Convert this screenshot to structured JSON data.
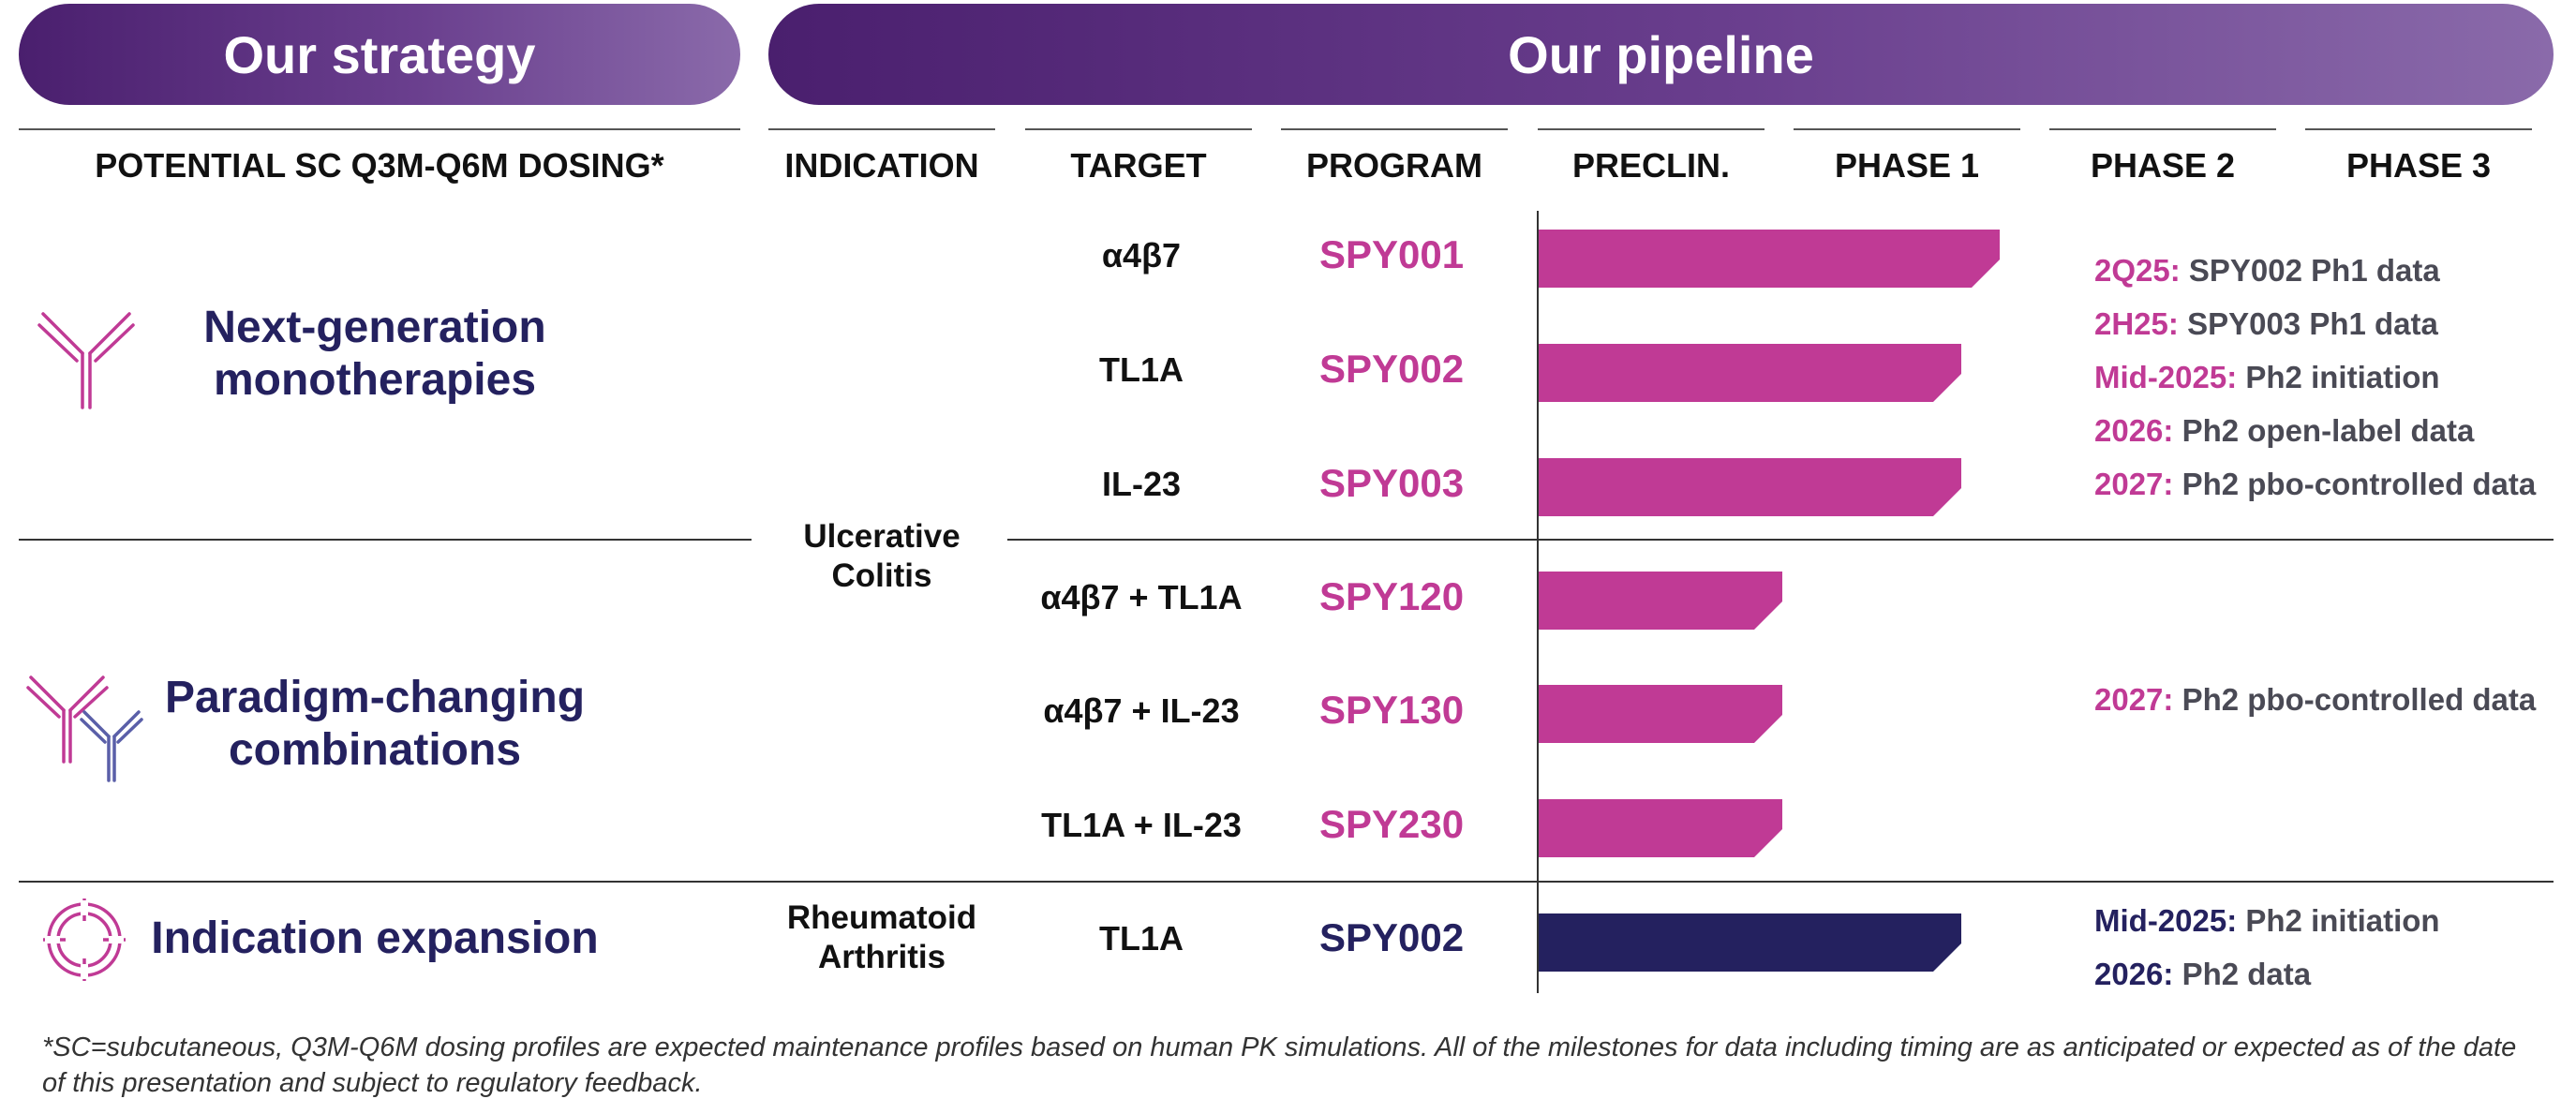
{
  "banners": {
    "strategy": "Our strategy",
    "pipeline": "Our pipeline"
  },
  "headers": {
    "dosing": "POTENTIAL SC Q3M-Q6M DOSING*",
    "indication": "INDICATION",
    "target": "TARGET",
    "program": "PROGRAM",
    "preclin": "PRECLIN.",
    "phase1": "PHASE 1",
    "phase2": "PHASE 2",
    "phase3": "PHASE 3"
  },
  "strategies": {
    "monotherapies": {
      "line1": "Next-generation",
      "line2": "monotherapies"
    },
    "combinations": {
      "line1": "Paradigm-changing",
      "line2": "combinations"
    },
    "expansion": {
      "line1": "Indication expansion"
    }
  },
  "indications": {
    "uc": {
      "line1": "Ulcerative",
      "line2": "Colitis"
    },
    "ra": {
      "line1": "Rheumatoid",
      "line2": "Arthritis"
    }
  },
  "rows": [
    {
      "target": "α4β7",
      "program": "SPY001",
      "progress_phase": 1.8
    },
    {
      "target": "TL1A",
      "program": "SPY002",
      "progress_phase": 1.65
    },
    {
      "target": "IL-23",
      "program": "SPY003",
      "progress_phase": 1.65
    },
    {
      "target": "α4β7 + TL1A",
      "program": "SPY120",
      "progress_phase": 0.95
    },
    {
      "target": "α4β7 + IL-23",
      "program": "SPY130",
      "progress_phase": 0.95
    },
    {
      "target": "TL1A + IL-23",
      "program": "SPY230",
      "progress_phase": 0.95
    },
    {
      "target": "TL1A",
      "program": "SPY002",
      "progress_phase": 1.65
    }
  ],
  "milestones": {
    "mono": [
      {
        "label": "2Q25:",
        "text": "SPY002 Ph1 data"
      },
      {
        "label": "2H25:",
        "text": "SPY003 Ph1 data"
      },
      {
        "label": "Mid-2025:",
        "text": "Ph2 initiation"
      },
      {
        "label": "2026:",
        "text": "Ph2 open-label data"
      },
      {
        "label": "2027:",
        "text": "Ph2 pbo-controlled data"
      }
    ],
    "combo": [
      {
        "label": "2027:",
        "text": "Ph2 pbo-controlled data"
      }
    ],
    "ra": [
      {
        "label": "Mid-2025:",
        "text": "Ph2 initiation"
      },
      {
        "label": "2026:",
        "text": "Ph2 data"
      }
    ]
  },
  "footnote": {
    "line1": "*SC=subcutaneous, Q3M-Q6M dosing profiles are expected maintenance profiles based on human PK simulations. All of the milestones for data including timing are as anticipated or expected as of the date",
    "line2": "of this presentation and subject to regulatory feedback."
  },
  "colors": {
    "magenta": "#c03a95",
    "navy": "#24215f",
    "banner_start": "#4a1f6e",
    "banner_end": "#8a6aaa",
    "icon_blue": "#5a5fa8"
  }
}
